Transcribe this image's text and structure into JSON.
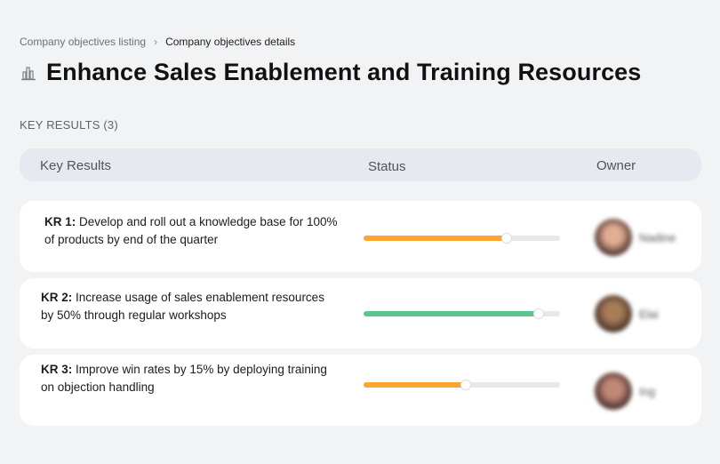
{
  "breadcrumb": {
    "items": [
      {
        "label": "Company objectives listing"
      },
      {
        "label": "Company objectives details"
      }
    ],
    "separator": "›"
  },
  "page": {
    "icon": "building-chart-icon",
    "title": "Enhance Sales Enablement and Training Resources"
  },
  "key_results": {
    "section_label": "KEY RESULTS (3)",
    "columns": {
      "key_results": "Key Results",
      "status": "Status",
      "owner": "Owner"
    },
    "rows": [
      {
        "id": "KR 1:",
        "text": "Develop and roll out a knowledge base for 100% of products by end of the quarter",
        "progress_percent": 73,
        "progress_color": "#fca631",
        "owner_name": "Nadine",
        "avatar_colors": [
          "#e1ad93",
          "#3a2520"
        ]
      },
      {
        "id": "KR 2:",
        "text": "Increase usage of sales enablement resources by 50% through regular workshops",
        "progress_percent": 89,
        "progress_color": "#5ac58c",
        "owner_name": "Elai",
        "avatar_colors": [
          "#a77c57",
          "#3b2a22"
        ]
      },
      {
        "id": "KR 3:",
        "text": "Improve win rates by 15% by deploying training on objection handling",
        "progress_percent": 52,
        "progress_color": "#fca631",
        "owner_name": "Ing",
        "avatar_colors": [
          "#c08877",
          "#3a2420"
        ]
      }
    ]
  }
}
